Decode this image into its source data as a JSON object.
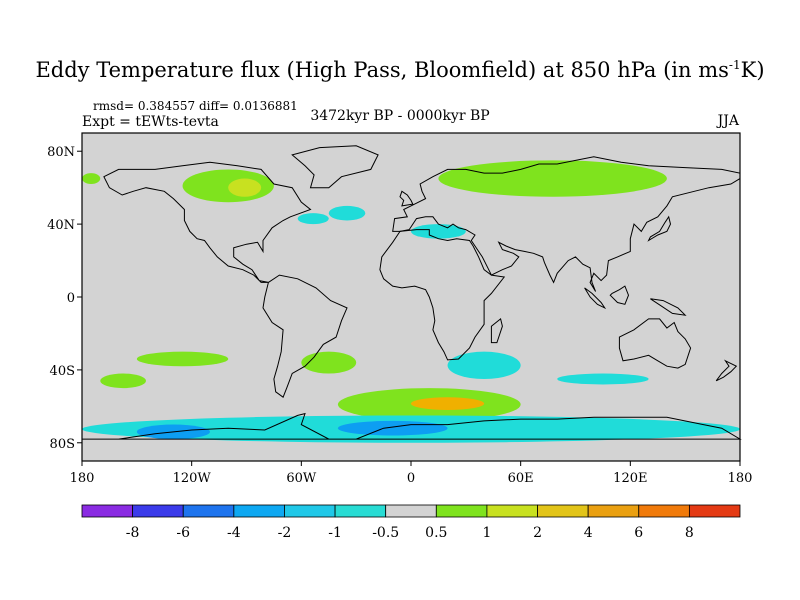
{
  "title": {
    "main": "Eddy Temperature flux (High Pass, Bloomfield) at 850 hPa (in ms",
    "sup": "-1",
    "end": "K)"
  },
  "stats": {
    "rmsd_label": "rmsd=",
    "rmsd_value": "0.384557",
    "diff_label": "diff=",
    "diff_value": "0.0136881"
  },
  "experiment": "Expt = tEWts-tevta",
  "period": "3472kyr BP - 0000kyr BP",
  "season": "JJA",
  "map": {
    "projection": "cylindrical equidistant",
    "lon_range": [
      -180,
      180
    ],
    "lat_range": [
      -90,
      90
    ],
    "lon_ticks": [
      {
        "value": -180,
        "label": "180"
      },
      {
        "value": -120,
        "label": "120W"
      },
      {
        "value": -60,
        "label": "60W"
      },
      {
        "value": 0,
        "label": "0"
      },
      {
        "value": 60,
        "label": "60E"
      },
      {
        "value": 120,
        "label": "120E"
      },
      {
        "value": 180,
        "label": "180"
      }
    ],
    "lat_ticks": [
      {
        "value": 80,
        "label": "80N"
      },
      {
        "value": 40,
        "label": "40N"
      },
      {
        "value": 0,
        "label": "0"
      },
      {
        "value": -40,
        "label": "40S"
      },
      {
        "value": -80,
        "label": "80S"
      }
    ],
    "background_color": "#d3d3d3",
    "coast_color": "#000000",
    "anomaly_regions": [
      {
        "name": "north-america-green",
        "lon": [
          -125,
          -75
        ],
        "lat": [
          52,
          70
        ],
        "color": "#7fe31e"
      },
      {
        "name": "hudson-bay-yellow",
        "lon": [
          -100,
          -82
        ],
        "lat": [
          55,
          65
        ],
        "color": "#c8e120"
      },
      {
        "name": "north-pacific-green",
        "lon": [
          -180,
          -170
        ],
        "lat": [
          62,
          68
        ],
        "color": "#7fe31e"
      },
      {
        "name": "northwest-atlantic-cyan",
        "lon": [
          -62,
          -45
        ],
        "lat": [
          40,
          46
        ],
        "color": "#20dcd9"
      },
      {
        "name": "north-atlantic-cyan",
        "lon": [
          -45,
          -25
        ],
        "lat": [
          42,
          50
        ],
        "color": "#20dcd9"
      },
      {
        "name": "siberia-green",
        "lon": [
          15,
          140
        ],
        "lat": [
          55,
          75
        ],
        "color": "#7fe31e"
      },
      {
        "name": "mediterranean-cyan",
        "lon": [
          0,
          30
        ],
        "lat": [
          32,
          40
        ],
        "color": "#20dcd9"
      },
      {
        "name": "south-pacific-green",
        "lon": [
          -150,
          -100
        ],
        "lat": [
          -38,
          -30
        ],
        "color": "#7fe31e"
      },
      {
        "name": "south-pacific-green-2",
        "lon": [
          -170,
          -145
        ],
        "lat": [
          -50,
          -42
        ],
        "color": "#7fe31e"
      },
      {
        "name": "south-atlantic-green",
        "lon": [
          -60,
          -30
        ],
        "lat": [
          -42,
          -30
        ],
        "color": "#7fe31e"
      },
      {
        "name": "south-africa-cyan",
        "lon": [
          20,
          60
        ],
        "lat": [
          -45,
          -30
        ],
        "color": "#20dcd9"
      },
      {
        "name": "southern-ocean-green",
        "lon": [
          -40,
          60
        ],
        "lat": [
          -68,
          -50
        ],
        "color": "#7fe31e"
      },
      {
        "name": "southern-ocean-orange",
        "lon": [
          0,
          40
        ],
        "lat": [
          -62,
          -55
        ],
        "color": "#f0b000"
      },
      {
        "name": "antarctic-cyan-belt",
        "lon": [
          -180,
          180
        ],
        "lat": [
          -80,
          -65
        ],
        "color": "#20dcd9"
      },
      {
        "name": "antarctic-blue-1",
        "lon": [
          -150,
          -110
        ],
        "lat": [
          -78,
          -70
        ],
        "color": "#0d9ef2"
      },
      {
        "name": "antarctic-blue-2",
        "lon": [
          -40,
          20
        ],
        "lat": [
          -76,
          -68
        ],
        "color": "#0d9ef2"
      },
      {
        "name": "south-indian-cyan",
        "lon": [
          80,
          130
        ],
        "lat": [
          -48,
          -42
        ],
        "color": "#20dcd9"
      }
    ]
  },
  "colorbar": {
    "colors": [
      "#8a2be2",
      "#3b3bea",
      "#1e74ee",
      "#0ea8f2",
      "#20c8e8",
      "#28dcd4",
      "#d3d3d3",
      "#7fe31e",
      "#c8e120",
      "#e2c419",
      "#eaa011",
      "#f07a0a",
      "#e43a14"
    ],
    "labels": [
      "-8",
      "-6",
      "-4",
      "-2",
      "-1",
      "-0.5",
      "0.5",
      "1",
      "2",
      "4",
      "6",
      "8"
    ]
  }
}
